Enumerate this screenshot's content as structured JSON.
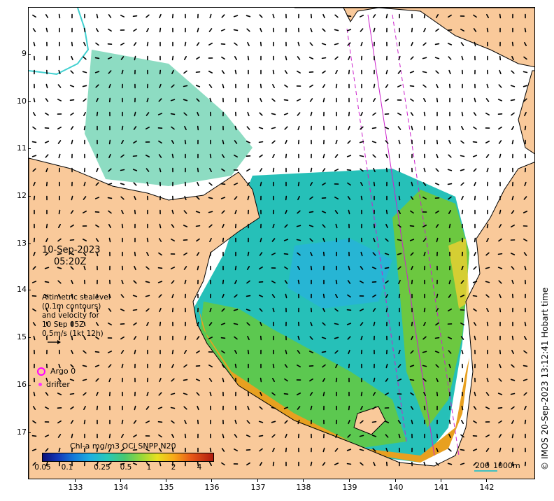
{
  "timestamp": {
    "date": "10-Sep-2023",
    "time": "05:20Z"
  },
  "legend": {
    "lines": [
      "Altimetric sealevel",
      "(0.1m contours)",
      "and velocity for",
      "10 Sep 05Z",
      "0.5m/s (1kt 12h)"
    ],
    "argo_label": "Argo 0",
    "drifter_label": "drifter",
    "argo_color": "#ff00ff",
    "drifter_color": "#ff33ff"
  },
  "colorbar": {
    "title": "Chl-a mg/m3 OCi SNPP N20",
    "ticks": [
      "0.05",
      "0.1",
      "0.25",
      "0.5",
      "1",
      "2",
      "4"
    ]
  },
  "scalebar": {
    "label_200": "200",
    "label_1000": "1000m"
  },
  "credit": "© IMOS 20-Sep-2023 13:12:41 Hobart time",
  "axes": {
    "x_ticks": [
      "133",
      "134",
      "135",
      "136",
      "137",
      "138",
      "139",
      "140",
      "141",
      "142"
    ],
    "y_ticks": [
      "9",
      "10",
      "11",
      "12",
      "13",
      "14",
      "15",
      "16",
      "17"
    ]
  },
  "colors": {
    "land": "#f9c99a",
    "coast": "#000000",
    "rivers": "#40d0d0",
    "tracks": "#cc22cc"
  }
}
